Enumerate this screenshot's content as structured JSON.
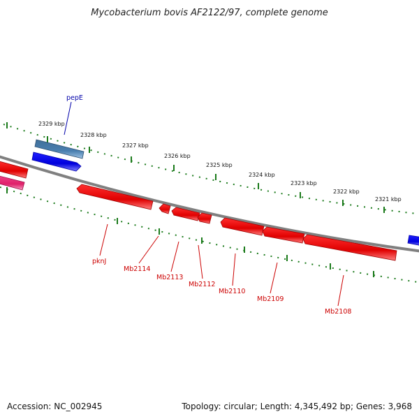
{
  "title": "Mycobacterium bovis AF2122/97, complete genome",
  "footer": {
    "accession": "Accession: NC_002945",
    "summary": "Topology: circular; Length: 4,345,492 bp; Genes: 3,968"
  },
  "colors": {
    "backbone": "#808080",
    "tick": "#1a7a1a",
    "label_reverse": "#cc0000",
    "label_forward": "#0000aa",
    "gene_red": "#ff0000",
    "gene_blue": "#0000ee",
    "gene_steel": "#4a7faf",
    "gene_pink": "#e8337a"
  },
  "ticks": [
    "2329 kbp",
    "2328 kbp",
    "2327 kbp",
    "2326 kbp",
    "2325 kbp",
    "2324 kbp",
    "2323 kbp",
    "2322 kbp",
    "2321 kbp"
  ],
  "genes_reverse": [
    "pknJ",
    "Mb2114",
    "Mb2113",
    "Mb2112",
    "Mb2110",
    "Mb2109",
    "Mb2108"
  ],
  "genes_forward": [
    "pepE"
  ]
}
